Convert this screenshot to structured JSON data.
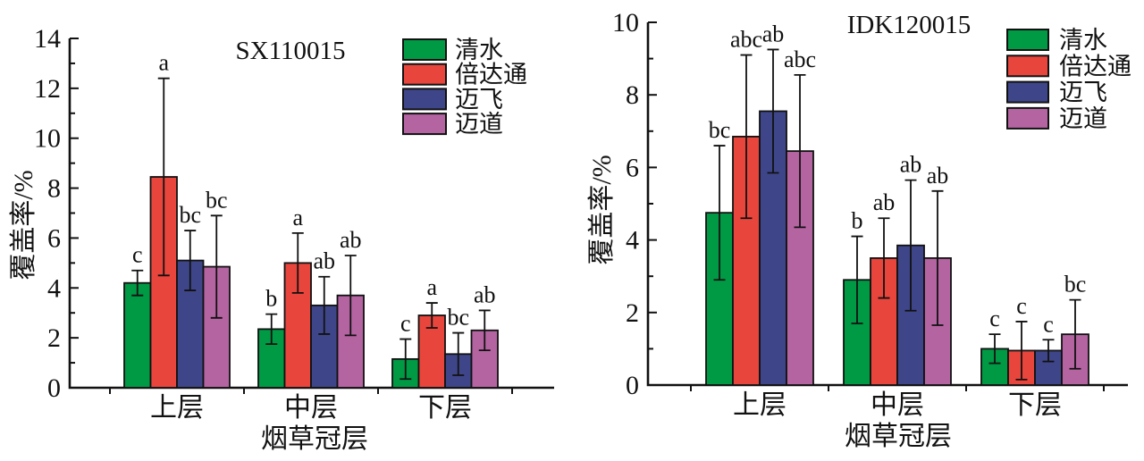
{
  "figure": {
    "background": "#ffffff",
    "ink_color": "#111111",
    "description": "Two grouped bar charts with error bars and significance letters"
  },
  "chart_data": [
    {
      "type": "bar",
      "title": "SX110015",
      "ylabel": "覆盖率/%",
      "xlabel": "烟草冠层",
      "categories": [
        "上层",
        "中层",
        "下层"
      ],
      "ylim": [
        0,
        14
      ],
      "ytick_step": 2,
      "ytick_minor_step": 1,
      "grid": false,
      "legend_position": "top-right-inside",
      "series": [
        {
          "name": "清水",
          "color": "#009944",
          "values": [
            4.2,
            2.35,
            1.15
          ],
          "errors": [
            0.5,
            0.6,
            0.8
          ],
          "sig_letters": [
            "c",
            "b",
            "c"
          ]
        },
        {
          "name": "倍达通",
          "color": "#E8453C",
          "values": [
            8.45,
            5.0,
            2.9
          ],
          "errors": [
            3.95,
            1.2,
            0.5
          ],
          "sig_letters": [
            "a",
            "a",
            "a"
          ]
        },
        {
          "name": "迈飞",
          "color": "#3E4689",
          "values": [
            5.1,
            3.3,
            1.35
          ],
          "errors": [
            1.2,
            1.15,
            0.85
          ],
          "sig_letters": [
            "bc",
            "ab",
            "bc"
          ]
        },
        {
          "name": "迈道",
          "color": "#B564A2",
          "values": [
            4.85,
            3.7,
            2.3
          ],
          "errors": [
            2.05,
            1.6,
            0.8
          ],
          "sig_letters": [
            "bc",
            "ab",
            "ab"
          ]
        }
      ]
    },
    {
      "type": "bar",
      "title": "IDK120015",
      "ylabel": "覆盖率/%",
      "xlabel": "烟草冠层",
      "categories": [
        "上层",
        "中层",
        "下层"
      ],
      "ylim": [
        0,
        10
      ],
      "ytick_step": 2,
      "ytick_minor_step": 1,
      "grid": false,
      "legend_position": "top-right-inside",
      "series": [
        {
          "name": "清水",
          "color": "#009944",
          "values": [
            4.75,
            2.9,
            1.0
          ],
          "errors": [
            1.85,
            1.2,
            0.4
          ],
          "sig_letters": [
            "bc",
            "b",
            "c"
          ]
        },
        {
          "name": "倍达通",
          "color": "#E8453C",
          "values": [
            6.85,
            3.5,
            0.95
          ],
          "errors": [
            2.25,
            1.1,
            0.8
          ],
          "sig_letters": [
            "abc",
            "ab",
            "c"
          ]
        },
        {
          "name": "迈飞",
          "color": "#3E4689",
          "values": [
            7.55,
            3.85,
            0.95
          ],
          "errors": [
            1.7,
            1.8,
            0.3
          ],
          "sig_letters": [
            "ab",
            "ab",
            "c"
          ]
        },
        {
          "name": "迈道",
          "color": "#B564A2",
          "values": [
            6.45,
            3.5,
            1.4
          ],
          "errors": [
            2.1,
            1.85,
            0.95
          ],
          "sig_letters": [
            "abc",
            "ab",
            "bc"
          ]
        }
      ]
    }
  ]
}
